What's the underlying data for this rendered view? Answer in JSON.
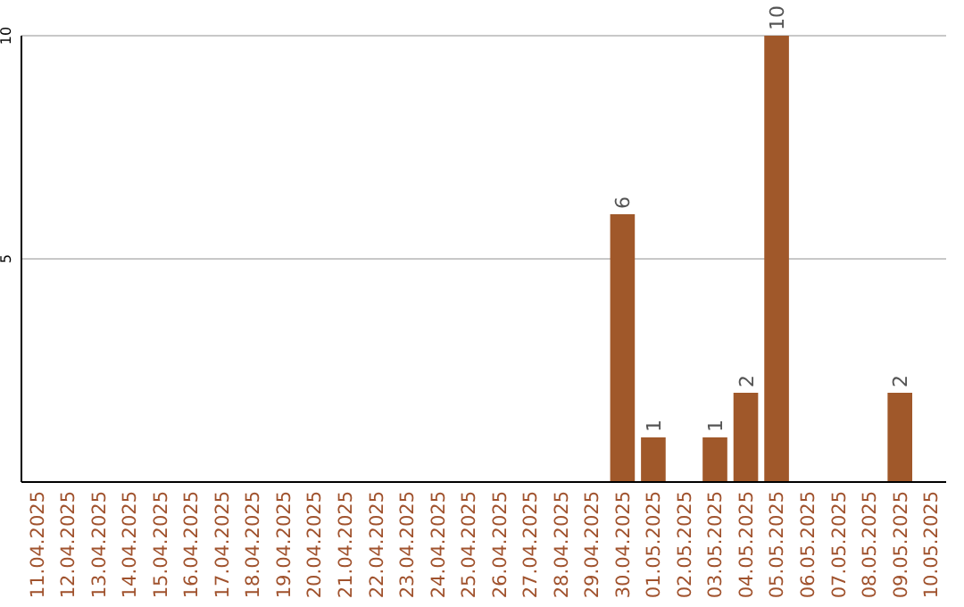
{
  "chart_data": {
    "type": "bar",
    "categories": [
      "11.04.2025",
      "12.04.2025",
      "13.04.2025",
      "14.04.2025",
      "15.04.2025",
      "16.04.2025",
      "17.04.2025",
      "18.04.2025",
      "19.04.2025",
      "20.04.2025",
      "21.04.2025",
      "22.04.2025",
      "23.04.2025",
      "24.04.2025",
      "25.04.2025",
      "26.04.2025",
      "27.04.2025",
      "28.04.2025",
      "29.04.2025",
      "30.04.2025",
      "01.05.2025",
      "02.05.2025",
      "03.05.2025",
      "04.05.2025",
      "05.05.2025",
      "06.05.2025",
      "07.05.2025",
      "08.05.2025",
      "09.05.2025",
      "10.05.2025"
    ],
    "values": [
      0,
      0,
      0,
      0,
      0,
      0,
      0,
      0,
      0,
      0,
      0,
      0,
      0,
      0,
      0,
      0,
      0,
      0,
      0,
      6,
      1,
      0,
      1,
      2,
      10,
      0,
      0,
      0,
      2,
      0
    ],
    "value_labels": [
      null,
      null,
      null,
      null,
      null,
      null,
      null,
      null,
      null,
      null,
      null,
      null,
      null,
      null,
      null,
      null,
      null,
      null,
      null,
      "6",
      "1",
      null,
      "1",
      "2",
      "10",
      null,
      null,
      null,
      "2",
      null
    ],
    "color": "#a0582a",
    "ylim": [
      0,
      10
    ],
    "yticks": [
      5,
      10
    ],
    "grid": "y"
  }
}
